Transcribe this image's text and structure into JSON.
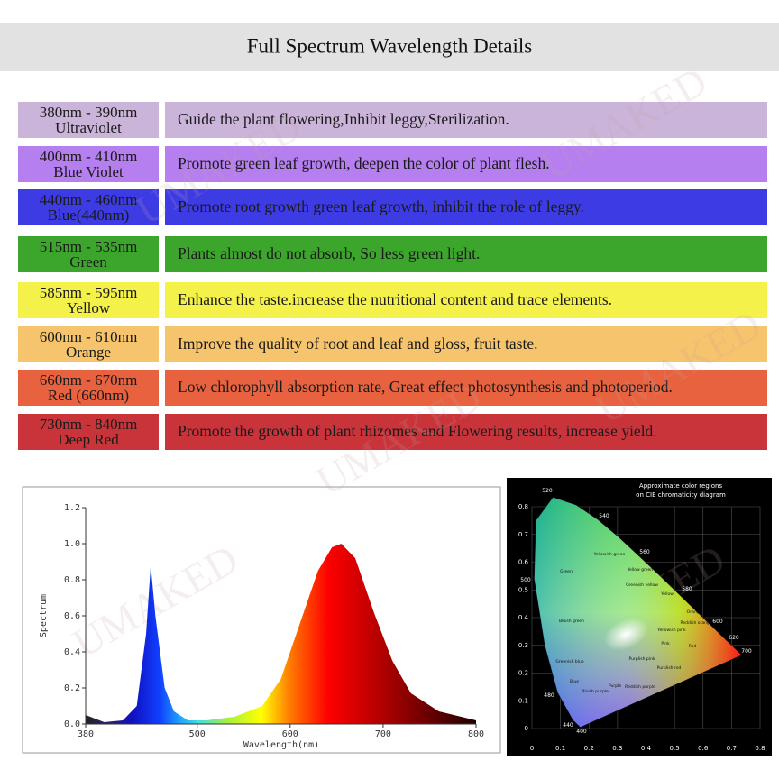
{
  "header": {
    "title": "Full Spectrum Wavelength Details"
  },
  "watermark": "UMAKED",
  "table": {
    "rows": [
      {
        "range": "380nm - 390nm",
        "name": "Ultraviolet",
        "description": "Guide the plant flowering,Inhibit leggy,Sterilization.",
        "color": "#cbb4da"
      },
      {
        "range": "400nm - 410nm",
        "name": "Blue Violet",
        "description": "Promote green leaf growth, deepen the color of plant flesh.",
        "color": "#b57ff0"
      },
      {
        "range": "440nm - 460nm",
        "name": "Blue(440nm)",
        "description": "Promote root growth  green leaf growth, inhibit the role of leggy.",
        "color": "#3d3ce4"
      },
      {
        "range": "515nm - 535nm",
        "name": "Green",
        "description": "Plants almost do not absorb, So less green light.",
        "color": "#3ca62c"
      },
      {
        "range": "585nm - 595nm",
        "name": "Yellow",
        "description": "Enhance the taste.increase the nutritional content and trace elements.",
        "color": "#f4f24a"
      },
      {
        "range": "600nm - 610nm",
        "name": "Orange",
        "description": "Improve the quality of root and leaf and gloss, fruit taste.",
        "color": "#f6c46c"
      },
      {
        "range": "660nm - 670nm",
        "name": "Red (660nm)",
        "description": "Low chlorophyll absorption rate, Great effect photosynthesis and photoperiod.",
        "color": "#e8623f"
      },
      {
        "range": "730nm - 840nm",
        "name": "Deep Red",
        "description": "Promote the growth of plant rhizomes and Flowering results, increase yield.",
        "color": "#c9343b"
      }
    ]
  },
  "chart_data": [
    {
      "type": "area",
      "x_label": "Wavelength(nm)",
      "y_label": "Spectrum",
      "x": [
        380,
        390,
        400,
        420,
        435,
        445,
        450,
        455,
        465,
        475,
        490,
        510,
        540,
        570,
        590,
        610,
        630,
        645,
        655,
        670,
        690,
        710,
        730,
        760,
        800
      ],
      "values": [
        0.05,
        0.03,
        0.01,
        0.02,
        0.1,
        0.5,
        0.88,
        0.6,
        0.2,
        0.07,
        0.02,
        0.02,
        0.04,
        0.1,
        0.25,
        0.55,
        0.85,
        0.98,
        1.0,
        0.92,
        0.62,
        0.35,
        0.17,
        0.07,
        0.02
      ],
      "xlim": [
        380,
        800
      ],
      "xticks": [
        380,
        500,
        600,
        700,
        800
      ],
      "ylim": [
        0,
        1.2
      ],
      "yticks": [
        {
          "value": 0,
          "label": "0.0"
        },
        0.2,
        0.4,
        0.6,
        0.8,
        {
          "value": 1,
          "label": "1.0"
        },
        1.2
      ]
    },
    {
      "type": "cie",
      "title": [
        "Approximate color regions",
        "on CIE chromaticity diagram"
      ],
      "xlim": [
        0,
        0.8
      ],
      "xticks": [
        0,
        0.1,
        0.2,
        0.3,
        0.4,
        0.5,
        0.6,
        0.7,
        0.8
      ],
      "ylim": [
        0,
        0.8
      ],
      "yticks": [
        0,
        0.1,
        0.2,
        0.3,
        0.4,
        0.5,
        0.6,
        0.7,
        0.8
      ],
      "wavelength_labels": [
        "520",
        "540",
        "560",
        "580",
        "600",
        "620",
        "700",
        "500",
        "480",
        "440",
        "400"
      ],
      "region_labels": [
        "Green",
        "Yellowish green",
        "Yellow green",
        "Greenish yellow",
        "Yellow",
        "Orange",
        "Reddish orange",
        "Bluish green",
        "Yellowish pink",
        "Pink",
        "Red",
        "Greenish blue",
        "Purplish pink",
        "Purplish red",
        "Blue",
        "Purple",
        "Reddish purple",
        "Bluish purple"
      ]
    }
  ]
}
